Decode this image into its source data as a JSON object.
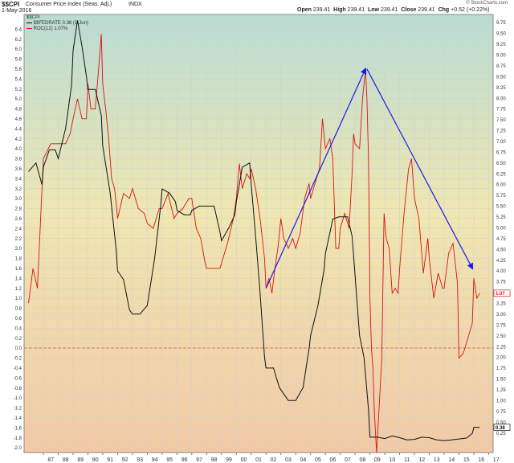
{
  "header": {
    "symbol": "$$CPI",
    "name": "Consumer Price Index (Seas. Adj.)",
    "exchange": "INDX",
    "date": "1-May-2016",
    "open_label": "Open",
    "open_value": "239.41",
    "high_label": "High",
    "high_value": "239.41",
    "low_label": "Low",
    "low_value": "239.41",
    "close_label": "Close",
    "close_value": "239.41",
    "chg_label": "Chg",
    "chg_value": "+0.52 (+0.22%)",
    "watermark": "© StockCharts.com"
  },
  "legend": {
    "cpi": "$$CPI",
    "fedrate": "$$FEDRATE 0.38 (1-Jun)",
    "roc": "ROC(12) 1.07%"
  },
  "colors": {
    "fedrate": "#111111",
    "roc": "#dd1111",
    "arrow": "#1a1aee",
    "zero_line": "#e05050",
    "bg_top": "#b9dcd2",
    "bg_mid": "#efe7b2",
    "bg_bottom": "#f2c9a6"
  },
  "chart_data": {
    "type": "line",
    "x_ticks": [
      "87",
      "88",
      "89",
      "90",
      "91",
      "92",
      "93",
      "94",
      "95",
      "96",
      "97",
      "98",
      "99",
      "00",
      "01",
      "02",
      "03",
      "04",
      "05",
      "06",
      "07",
      "08",
      "09",
      "10",
      "11",
      "12",
      "13",
      "14",
      "15",
      "16",
      "17"
    ],
    "left_axis": {
      "series": "ROC(12)",
      "ylim": [
        -2.0,
        6.5
      ],
      "ticks": [
        "-2.0",
        "-1.8",
        "-1.6",
        "-1.4",
        "-1.2",
        "-1.0",
        "-0.8",
        "-0.6",
        "-0.4",
        "-0.2",
        "0.0",
        "0.2",
        "0.4",
        "0.6",
        "0.8",
        "1.0",
        "1.2",
        "1.4",
        "1.6",
        "1.8",
        "2.0",
        "2.2",
        "2.4",
        "2.6",
        "2.8",
        "3.0",
        "3.2",
        "3.4",
        "3.6",
        "3.8",
        "4.0",
        "4.2",
        "4.4",
        "4.6",
        "4.8",
        "5.0",
        "5.2",
        "5.4",
        "5.6",
        "5.8",
        "6.0",
        "6.2",
        "6.4"
      ]
    },
    "right_axis": {
      "series": "$$FEDRATE",
      "ylim": [
        0.0,
        9.75
      ],
      "ticks": [
        "0.25",
        "0.50",
        "0.75",
        "1.00",
        "1.25",
        "1.50",
        "1.75",
        "2.00",
        "2.25",
        "2.50",
        "2.75",
        "3.00",
        "3.25",
        "3.50",
        "3.75",
        "4.00",
        "4.25",
        "4.50",
        "4.75",
        "5.00",
        "5.25",
        "5.50",
        "5.75",
        "6.00",
        "6.25",
        "6.50",
        "6.75",
        "7.00",
        "7.25",
        "7.50",
        "7.75",
        "8.00",
        "8.25",
        "8.50",
        "8.75",
        "9.00",
        "9.25",
        "9.50",
        "9.75"
      ]
    },
    "series": [
      {
        "name": "ROC(12) 1.07%",
        "axis": "left",
        "color": "#dd1111",
        "points": [
          [
            1986.0,
            0.9
          ],
          [
            1986.3,
            1.6
          ],
          [
            1986.6,
            1.2
          ],
          [
            1987.0,
            3.8
          ],
          [
            1987.5,
            4.1
          ],
          [
            1988.0,
            4.1
          ],
          [
            1988.5,
            4.1
          ],
          [
            1988.8,
            4.3
          ],
          [
            1989.0,
            4.6
          ],
          [
            1989.3,
            5.0
          ],
          [
            1989.6,
            4.6
          ],
          [
            1989.9,
            4.6
          ],
          [
            1990.0,
            5.3
          ],
          [
            1990.2,
            4.8
          ],
          [
            1990.5,
            4.8
          ],
          [
            1990.8,
            5.9
          ],
          [
            1990.9,
            6.3
          ],
          [
            1991.0,
            5.3
          ],
          [
            1991.2,
            4.8
          ],
          [
            1991.4,
            4.2
          ],
          [
            1991.6,
            3.4
          ],
          [
            1991.8,
            3.2
          ],
          [
            1992.0,
            2.6
          ],
          [
            1992.4,
            3.1
          ],
          [
            1992.8,
            3.0
          ],
          [
            1993.0,
            3.2
          ],
          [
            1993.4,
            2.8
          ],
          [
            1993.8,
            2.7
          ],
          [
            1994.0,
            2.5
          ],
          [
            1994.4,
            2.4
          ],
          [
            1994.8,
            2.8
          ],
          [
            1995.0,
            2.8
          ],
          [
            1995.4,
            3.1
          ],
          [
            1995.8,
            2.6
          ],
          [
            1996.0,
            2.7
          ],
          [
            1996.4,
            2.8
          ],
          [
            1996.8,
            3.0
          ],
          [
            1997.0,
            3.0
          ],
          [
            1997.3,
            2.4
          ],
          [
            1997.6,
            2.2
          ],
          [
            1997.9,
            1.7
          ],
          [
            1998.0,
            1.6
          ],
          [
            1998.5,
            1.6
          ],
          [
            1998.9,
            1.6
          ],
          [
            1999.0,
            1.7
          ],
          [
            1999.4,
            2.1
          ],
          [
            1999.8,
            2.6
          ],
          [
            2000.0,
            3.0
          ],
          [
            2000.2,
            3.7
          ],
          [
            2000.4,
            3.2
          ],
          [
            2000.7,
            3.5
          ],
          [
            2000.9,
            3.4
          ],
          [
            2001.0,
            3.6
          ],
          [
            2001.3,
            3.2
          ],
          [
            2001.6,
            2.6
          ],
          [
            2001.9,
            1.8
          ],
          [
            2002.0,
            1.2
          ],
          [
            2002.2,
            1.4
          ],
          [
            2002.4,
            1.1
          ],
          [
            2002.6,
            1.6
          ],
          [
            2002.8,
            2.0
          ],
          [
            2003.0,
            2.6
          ],
          [
            2003.2,
            2.2
          ],
          [
            2003.5,
            2.0
          ],
          [
            2003.8,
            2.2
          ],
          [
            2004.0,
            2.0
          ],
          [
            2004.3,
            2.3
          ],
          [
            2004.6,
            3.0
          ],
          [
            2004.9,
            3.3
          ],
          [
            2005.0,
            3.0
          ],
          [
            2005.3,
            3.3
          ],
          [
            2005.6,
            3.6
          ],
          [
            2005.8,
            4.6
          ],
          [
            2006.0,
            4.0
          ],
          [
            2006.3,
            4.2
          ],
          [
            2006.5,
            3.8
          ],
          [
            2006.7,
            2.0
          ],
          [
            2006.9,
            2.0
          ],
          [
            2007.0,
            2.4
          ],
          [
            2007.3,
            2.7
          ],
          [
            2007.6,
            2.4
          ],
          [
            2007.8,
            3.5
          ],
          [
            2007.9,
            4.3
          ],
          [
            2008.0,
            4.1
          ],
          [
            2008.3,
            4.0
          ],
          [
            2008.5,
            5.0
          ],
          [
            2008.7,
            5.6
          ],
          [
            2008.8,
            5.0
          ],
          [
            2008.9,
            3.8
          ],
          [
            2009.0,
            1.0
          ],
          [
            2009.1,
            0.0
          ],
          [
            2009.2,
            -0.4
          ],
          [
            2009.3,
            -1.3
          ],
          [
            2009.45,
            -2.1
          ],
          [
            2009.6,
            -1.3
          ],
          [
            2009.8,
            -0.2
          ],
          [
            2009.95,
            2.7
          ],
          [
            2010.1,
            2.2
          ],
          [
            2010.3,
            2.0
          ],
          [
            2010.5,
            1.1
          ],
          [
            2010.7,
            1.2
          ],
          [
            2010.9,
            1.1
          ],
          [
            2011.0,
            1.6
          ],
          [
            2011.3,
            2.7
          ],
          [
            2011.6,
            3.6
          ],
          [
            2011.8,
            3.8
          ],
          [
            2012.0,
            3.0
          ],
          [
            2012.3,
            2.6
          ],
          [
            2012.6,
            1.5
          ],
          [
            2012.9,
            2.2
          ],
          [
            2013.0,
            1.8
          ],
          [
            2013.3,
            1.0
          ],
          [
            2013.6,
            1.5
          ],
          [
            2013.9,
            1.2
          ],
          [
            2014.0,
            1.2
          ],
          [
            2014.3,
            1.9
          ],
          [
            2014.6,
            2.1
          ],
          [
            2014.9,
            1.3
          ],
          [
            2015.0,
            -0.2
          ],
          [
            2015.3,
            -0.1
          ],
          [
            2015.6,
            0.2
          ],
          [
            2015.9,
            0.5
          ],
          [
            2016.0,
            1.4
          ],
          [
            2016.2,
            1.0
          ],
          [
            2016.4,
            1.1
          ]
        ]
      },
      {
        "name": "$$FEDRATE 0.38 (1-Jun)",
        "axis": "right",
        "color": "#111111",
        "points": [
          [
            1986.0,
            6.3
          ],
          [
            1986.5,
            6.5
          ],
          [
            1986.9,
            6.0
          ],
          [
            1987.0,
            6.4
          ],
          [
            1987.4,
            6.8
          ],
          [
            1987.8,
            6.8
          ],
          [
            1988.0,
            6.6
          ],
          [
            1988.5,
            7.3
          ],
          [
            1988.9,
            8.3
          ],
          [
            1989.0,
            9.1
          ],
          [
            1989.3,
            9.8
          ],
          [
            1989.6,
            9.2
          ],
          [
            1989.9,
            8.5
          ],
          [
            1990.0,
            8.2
          ],
          [
            1990.5,
            8.2
          ],
          [
            1990.9,
            7.6
          ],
          [
            1991.0,
            6.9
          ],
          [
            1991.5,
            5.8
          ],
          [
            1991.9,
            4.5
          ],
          [
            1992.0,
            4.0
          ],
          [
            1992.4,
            3.8
          ],
          [
            1992.8,
            3.1
          ],
          [
            1993.0,
            3.0
          ],
          [
            1993.5,
            3.0
          ],
          [
            1994.0,
            3.2
          ],
          [
            1994.5,
            4.3
          ],
          [
            1994.9,
            5.5
          ],
          [
            1995.0,
            5.9
          ],
          [
            1995.5,
            5.8
          ],
          [
            1995.9,
            5.6
          ],
          [
            1996.0,
            5.4
          ],
          [
            1996.5,
            5.3
          ],
          [
            1996.9,
            5.3
          ],
          [
            1997.0,
            5.4
          ],
          [
            1997.5,
            5.5
          ],
          [
            1997.9,
            5.5
          ],
          [
            1998.0,
            5.5
          ],
          [
            1998.5,
            5.5
          ],
          [
            1998.9,
            4.9
          ],
          [
            1999.0,
            4.7
          ],
          [
            1999.5,
            5.0
          ],
          [
            1999.9,
            5.3
          ],
          [
            2000.0,
            5.6
          ],
          [
            2000.4,
            6.4
          ],
          [
            2000.9,
            6.5
          ],
          [
            2001.0,
            6.0
          ],
          [
            2001.3,
            4.8
          ],
          [
            2001.6,
            3.5
          ],
          [
            2001.9,
            2.0
          ],
          [
            2002.0,
            1.75
          ],
          [
            2002.5,
            1.75
          ],
          [
            2002.9,
            1.3
          ],
          [
            2003.0,
            1.25
          ],
          [
            2003.5,
            1.0
          ],
          [
            2003.9,
            1.0
          ],
          [
            2004.0,
            1.0
          ],
          [
            2004.5,
            1.3
          ],
          [
            2004.9,
            2.2
          ],
          [
            2005.0,
            2.5
          ],
          [
            2005.5,
            3.2
          ],
          [
            2005.9,
            4.0
          ],
          [
            2006.0,
            4.4
          ],
          [
            2006.5,
            5.2
          ],
          [
            2006.9,
            5.25
          ],
          [
            2007.0,
            5.25
          ],
          [
            2007.5,
            5.25
          ],
          [
            2007.8,
            4.8
          ],
          [
            2008.0,
            3.9
          ],
          [
            2008.3,
            2.5
          ],
          [
            2008.6,
            2.0
          ],
          [
            2008.9,
            0.8
          ],
          [
            2009.0,
            0.15
          ],
          [
            2009.5,
            0.15
          ],
          [
            2010.0,
            0.12
          ],
          [
            2010.5,
            0.18
          ],
          [
            2011.0,
            0.14
          ],
          [
            2011.5,
            0.09
          ],
          [
            2012.0,
            0.1
          ],
          [
            2012.5,
            0.15
          ],
          [
            2013.0,
            0.14
          ],
          [
            2013.5,
            0.09
          ],
          [
            2014.0,
            0.07
          ],
          [
            2014.5,
            0.09
          ],
          [
            2015.0,
            0.11
          ],
          [
            2015.5,
            0.13
          ],
          [
            2015.9,
            0.24
          ],
          [
            2016.0,
            0.38
          ],
          [
            2016.4,
            0.38
          ]
        ]
      }
    ],
    "annotations": [
      {
        "type": "arrow",
        "axis": "left",
        "from": [
          2002.0,
          1.2
        ],
        "to": [
          2008.7,
          5.6
        ]
      },
      {
        "type": "arrow",
        "axis": "left",
        "from": [
          2008.8,
          5.6
        ],
        "to": [
          2015.9,
          1.6
        ]
      }
    ],
    "reference_line": {
      "axis": "left",
      "y": 0.0
    },
    "end_labels": [
      {
        "series": "ROC(12) 1.07%",
        "text": "1.07"
      },
      {
        "series": "$$FEDRATE 0.38 (1-Jun)",
        "text": "0.38"
      }
    ],
    "grid": true
  }
}
